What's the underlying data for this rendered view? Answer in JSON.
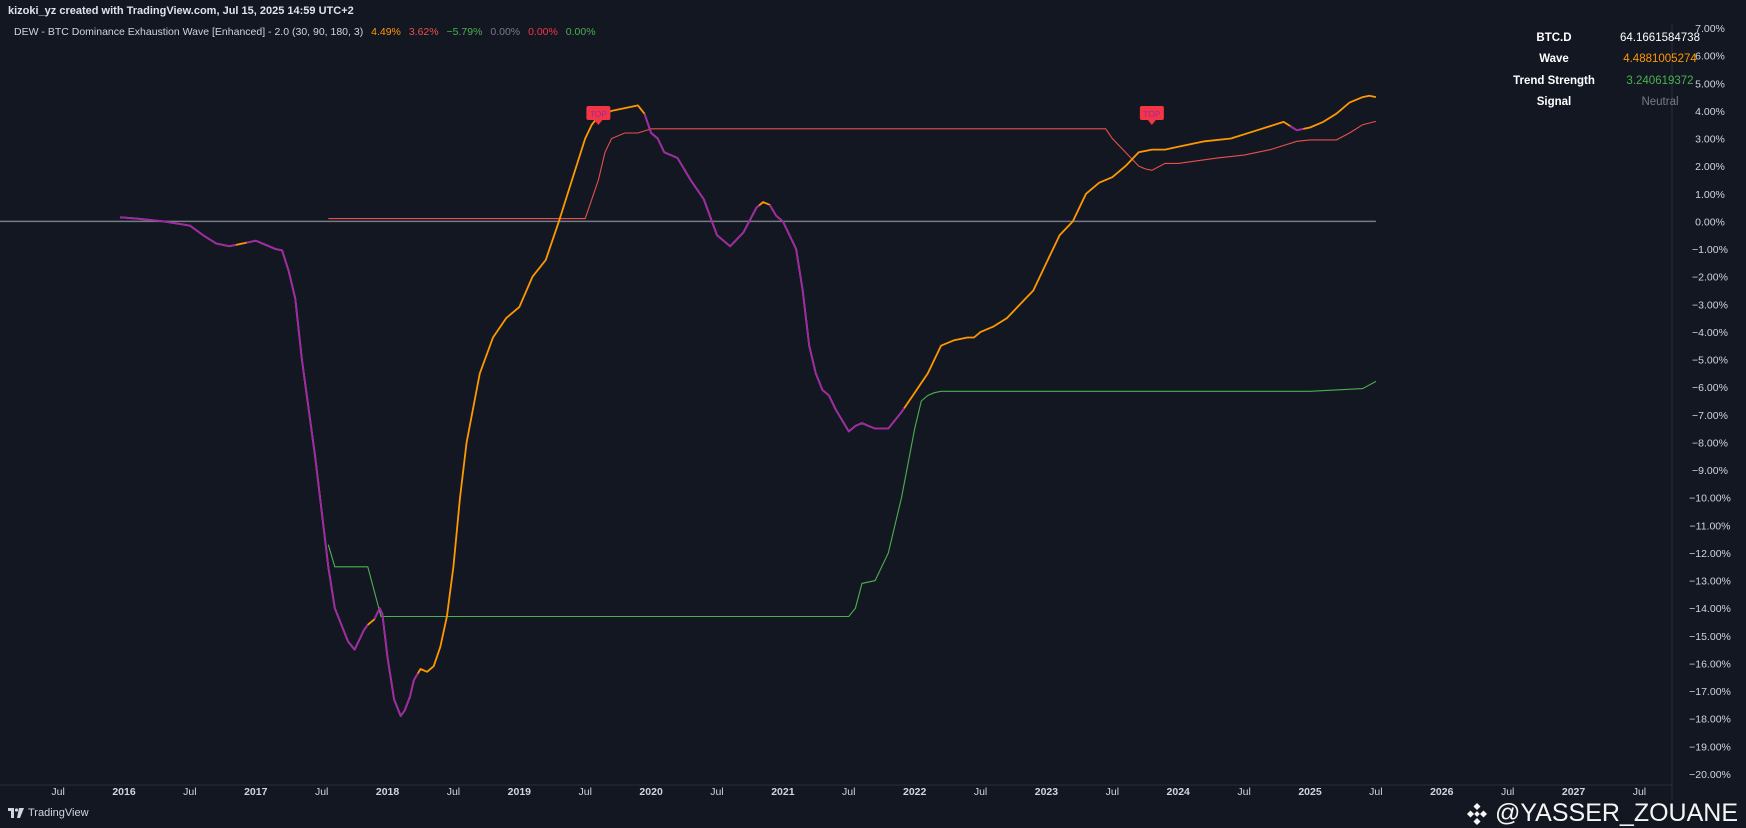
{
  "header": {
    "title": "kizoki_yz created with TradingView.com, Jul 15, 2025 14:59 UTC+2"
  },
  "legend": {
    "name": "DEW - BTC Dominance Exhaustion Wave [Enhanced] - 2.0 (30, 90, 180, 3)",
    "values": [
      {
        "text": "4.49%",
        "color": "#ff9800"
      },
      {
        "text": "3.62%",
        "color": "#e8504a"
      },
      {
        "text": "−5.79%",
        "color": "#4caf50"
      },
      {
        "text": "0.00%",
        "color": "#787b86"
      },
      {
        "text": "0.00%",
        "color": "#f23645"
      },
      {
        "text": "0.00%",
        "color": "#4caf50"
      }
    ]
  },
  "info_table": [
    {
      "key": "BTC.D",
      "value": "64.1661584738",
      "color": "#ffffff"
    },
    {
      "key": "Wave",
      "value": "4.4881005274",
      "color": "#ff9800"
    },
    {
      "key": "Trend Strength",
      "value": "3.240619372",
      "color": "#4caf50"
    },
    {
      "key": "Signal",
      "value": "Neutral",
      "color": "#787b86"
    }
  ],
  "markers": [
    {
      "label": "TOP",
      "x": 2019.6,
      "y": 3.6
    },
    {
      "label": "TOP",
      "x": 2023.8,
      "y": 3.6
    }
  ],
  "footer": {
    "brand": "TradingView",
    "watermark": "@YASSER_ZOUANE",
    "watermark_icon": "binance-diamond-icon"
  },
  "colors": {
    "background": "#131722",
    "wave_orange": "#ff9800",
    "wave_purple": "#9c27b0",
    "upper_band": "#e8504a",
    "lower_band": "#4caf50",
    "zero_line": "#787b86",
    "marker": "#f23645"
  },
  "chart_data": {
    "type": "line",
    "title": "",
    "xlabel": "",
    "ylabel": "",
    "xlim": [
      2015.0,
      2028.0
    ],
    "ylim": [
      -20.0,
      7.0
    ],
    "grid": false,
    "x_ticks": [
      {
        "x": 2015.5,
        "label": "Jul"
      },
      {
        "x": 2016.0,
        "label": "2016"
      },
      {
        "x": 2016.5,
        "label": "Jul"
      },
      {
        "x": 2017.0,
        "label": "2017"
      },
      {
        "x": 2017.5,
        "label": "Jul"
      },
      {
        "x": 2018.0,
        "label": "2018"
      },
      {
        "x": 2018.5,
        "label": "Jul"
      },
      {
        "x": 2019.0,
        "label": "2019"
      },
      {
        "x": 2019.5,
        "label": "Jul"
      },
      {
        "x": 2020.0,
        "label": "2020"
      },
      {
        "x": 2020.5,
        "label": "Jul"
      },
      {
        "x": 2021.0,
        "label": "2021"
      },
      {
        "x": 2021.5,
        "label": "Jul"
      },
      {
        "x": 2022.0,
        "label": "2022"
      },
      {
        "x": 2022.5,
        "label": "Jul"
      },
      {
        "x": 2023.0,
        "label": "2023"
      },
      {
        "x": 2023.5,
        "label": "Jul"
      },
      {
        "x": 2024.0,
        "label": "2024"
      },
      {
        "x": 2024.5,
        "label": "Jul"
      },
      {
        "x": 2025.0,
        "label": "2025"
      },
      {
        "x": 2025.5,
        "label": "Jul"
      },
      {
        "x": 2026.0,
        "label": "2026"
      },
      {
        "x": 2026.5,
        "label": "Jul"
      },
      {
        "x": 2027.0,
        "label": "2027"
      },
      {
        "x": 2027.5,
        "label": "Jul"
      }
    ],
    "y_ticks": [
      "7.00%",
      "6.00%",
      "5.00%",
      "4.00%",
      "3.00%",
      "2.00%",
      "1.00%",
      "0.00%",
      "−1.00%",
      "−2.00%",
      "−3.00%",
      "−4.00%",
      "−5.00%",
      "−6.00%",
      "−7.00%",
      "−8.00%",
      "−9.00%",
      "−10.00%",
      "−11.00%",
      "−12.00%",
      "−13.00%",
      "−14.00%",
      "−15.00%",
      "−16.00%",
      "−17.00%",
      "−18.00%",
      "−19.00%",
      "−20.00%"
    ],
    "y_tick_values": [
      7,
      6,
      5,
      4,
      3,
      2,
      1,
      0,
      -1,
      -2,
      -3,
      -4,
      -5,
      -6,
      -7,
      -8,
      -9,
      -10,
      -11,
      -12,
      -13,
      -14,
      -15,
      -16,
      -17,
      -18,
      -19,
      -20
    ],
    "zero_line": {
      "x": [
        2015.0,
        2025.5
      ],
      "y": 0
    },
    "series": [
      {
        "id": "wave",
        "color_up": "#ff9800",
        "color_down": "#9c27b0",
        "x": [
          2015.97,
          2016.1,
          2016.3,
          2016.5,
          2016.6,
          2016.7,
          2016.8,
          2016.9,
          2017.0,
          2017.05,
          2017.15,
          2017.2,
          2017.25,
          2017.3,
          2017.35,
          2017.45,
          2017.55,
          2017.6,
          2017.7,
          2017.75,
          2017.8,
          2017.82,
          2017.85,
          2017.9,
          2017.92,
          2017.94,
          2017.96,
          2018.0,
          2018.05,
          2018.1,
          2018.13,
          2018.17,
          2018.2,
          2018.25,
          2018.3,
          2018.35,
          2018.4,
          2018.45,
          2018.5,
          2018.55,
          2018.6,
          2018.7,
          2018.8,
          2018.9,
          2019.0,
          2019.1,
          2019.2,
          2019.3,
          2019.4,
          2019.5,
          2019.55,
          2019.6,
          2019.7,
          2019.8,
          2019.9,
          2019.95,
          2020.0,
          2020.05,
          2020.1,
          2020.2,
          2020.3,
          2020.4,
          2020.5,
          2020.6,
          2020.7,
          2020.8,
          2020.85,
          2020.9,
          2020.95,
          2021.0,
          2021.1,
          2021.15,
          2021.2,
          2021.25,
          2021.3,
          2021.35,
          2021.4,
          2021.5,
          2021.55,
          2021.6,
          2021.65,
          2021.7,
          2021.8,
          2021.9,
          2022.0,
          2022.1,
          2022.2,
          2022.3,
          2022.4,
          2022.45,
          2022.5,
          2022.6,
          2022.7,
          2022.8,
          2022.9,
          2023.0,
          2023.1,
          2023.2,
          2023.3,
          2023.4,
          2023.5,
          2023.6,
          2023.7,
          2023.8,
          2023.9,
          2024.0,
          2024.2,
          2024.4,
          2024.6,
          2024.8,
          2024.9,
          2025.0,
          2025.1,
          2025.2,
          2025.3,
          2025.4,
          2025.45,
          2025.5
        ],
        "y": [
          0.15,
          0.1,
          0.0,
          -0.15,
          -0.5,
          -0.8,
          -0.9,
          -0.8,
          -0.7,
          -0.8,
          -1.0,
          -1.05,
          -1.8,
          -2.8,
          -5.0,
          -8.5,
          -12.5,
          -14.0,
          -15.2,
          -15.5,
          -15.0,
          -14.8,
          -14.6,
          -14.4,
          -14.2,
          -14.0,
          -14.2,
          -15.8,
          -17.3,
          -17.9,
          -17.7,
          -17.2,
          -16.6,
          -16.2,
          -16.3,
          -16.1,
          -15.4,
          -14.3,
          -12.5,
          -10.0,
          -8.0,
          -5.5,
          -4.2,
          -3.5,
          -3.1,
          -2.0,
          -1.4,
          0.0,
          1.5,
          3.0,
          3.5,
          3.8,
          4.0,
          4.1,
          4.2,
          3.9,
          3.2,
          3.0,
          2.5,
          2.3,
          1.5,
          0.8,
          -0.5,
          -0.9,
          -0.4,
          0.5,
          0.7,
          0.6,
          0.2,
          0.0,
          -1.0,
          -2.5,
          -4.5,
          -5.5,
          -6.1,
          -6.3,
          -6.8,
          -7.6,
          -7.4,
          -7.3,
          -7.4,
          -7.5,
          -7.5,
          -6.9,
          -6.2,
          -5.5,
          -4.5,
          -4.3,
          -4.2,
          -4.2,
          -4.0,
          -3.8,
          -3.5,
          -3.0,
          -2.5,
          -1.5,
          -0.5,
          0.0,
          1.0,
          1.4,
          1.6,
          2.0,
          2.5,
          2.6,
          2.6,
          2.7,
          2.9,
          3.0,
          3.3,
          3.6,
          3.3,
          3.4,
          3.6,
          3.9,
          4.3,
          4.5,
          4.55,
          4.5
        ],
        "purple_ranges": [
          [
            2015.97,
            2016.85
          ],
          [
            2016.93,
            2017.85
          ],
          [
            2017.9,
            2018.23
          ],
          [
            2019.95,
            2020.82
          ],
          [
            2020.9,
            2021.92
          ],
          [
            2024.85,
            2024.95
          ]
        ]
      },
      {
        "id": "upper_band",
        "color": "#e8504a",
        "name": "",
        "x": [
          2017.55,
          2019.5,
          2019.6,
          2019.65,
          2019.7,
          2019.8,
          2019.9,
          2020.0,
          2021.0,
          2022.0,
          2023.0,
          2023.45,
          2023.5,
          2023.6,
          2023.7,
          2023.75,
          2023.8,
          2023.9,
          2024.0,
          2024.3,
          2024.5,
          2024.7,
          2024.9,
          2025.0,
          2025.2,
          2025.3,
          2025.4,
          2025.5
        ],
        "y": [
          0.1,
          0.1,
          1.5,
          2.5,
          3.0,
          3.2,
          3.2,
          3.35,
          3.35,
          3.35,
          3.35,
          3.35,
          3.0,
          2.5,
          2.0,
          1.9,
          1.85,
          2.1,
          2.1,
          2.3,
          2.4,
          2.6,
          2.9,
          2.95,
          2.95,
          3.2,
          3.5,
          3.62
        ]
      },
      {
        "id": "lower_band",
        "color": "#4caf50",
        "name": "",
        "x": [
          2017.55,
          2017.6,
          2017.85,
          2017.95,
          2018.0,
          2019.0,
          2020.0,
          2021.0,
          2021.5,
          2021.55,
          2021.6,
          2021.7,
          2021.8,
          2021.9,
          2022.0,
          2022.05,
          2022.1,
          2022.15,
          2022.2,
          2022.3,
          2023.0,
          2024.0,
          2025.0,
          2025.2,
          2025.4,
          2025.5
        ],
        "y": [
          -11.7,
          -12.5,
          -12.5,
          -14.3,
          -14.3,
          -14.3,
          -14.3,
          -14.3,
          -14.3,
          -14.0,
          -13.1,
          -13.0,
          -12.0,
          -10.0,
          -7.5,
          -6.5,
          -6.3,
          -6.2,
          -6.15,
          -6.15,
          -6.15,
          -6.15,
          -6.15,
          -6.1,
          -6.05,
          -5.79
        ]
      }
    ]
  }
}
